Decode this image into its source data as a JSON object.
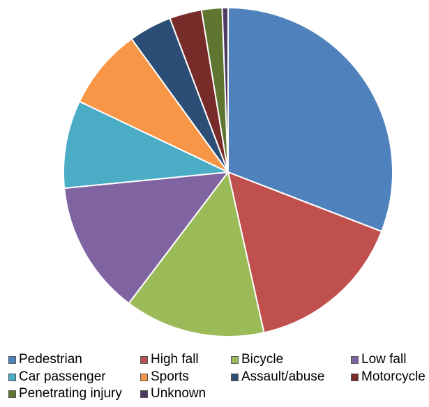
{
  "chart_data": {
    "type": "pie",
    "start_angle_deg": 0,
    "direction": "clockwise",
    "legend_position": "bottom",
    "slices": [
      {
        "label": "Pedestrian",
        "value": 32.2,
        "color": "#4F81BD"
      },
      {
        "label": "High fall",
        "value": 16.3,
        "color": "#C0504D"
      },
      {
        "label": "Bicycle",
        "value": 14.4,
        "color": "#9BBB59"
      },
      {
        "label": "Low fall",
        "value": 13.7,
        "color": "#8064A2"
      },
      {
        "label": "Car passenger",
        "value": 9.0,
        "color": "#4BACC6"
      },
      {
        "label": "Sports",
        "value": 8.3,
        "color": "#F79646"
      },
      {
        "label": "Assault/abuse",
        "value": 4.4,
        "color": "#2C4D75"
      },
      {
        "label": "Motorcycle",
        "value": 3.3,
        "color": "#772C2A"
      },
      {
        "label": "Penetrating injury",
        "value": 2.1,
        "color": "#5F7530"
      },
      {
        "label": "Unknown",
        "value": 0.6,
        "color": "#4D3B62"
      }
    ]
  }
}
